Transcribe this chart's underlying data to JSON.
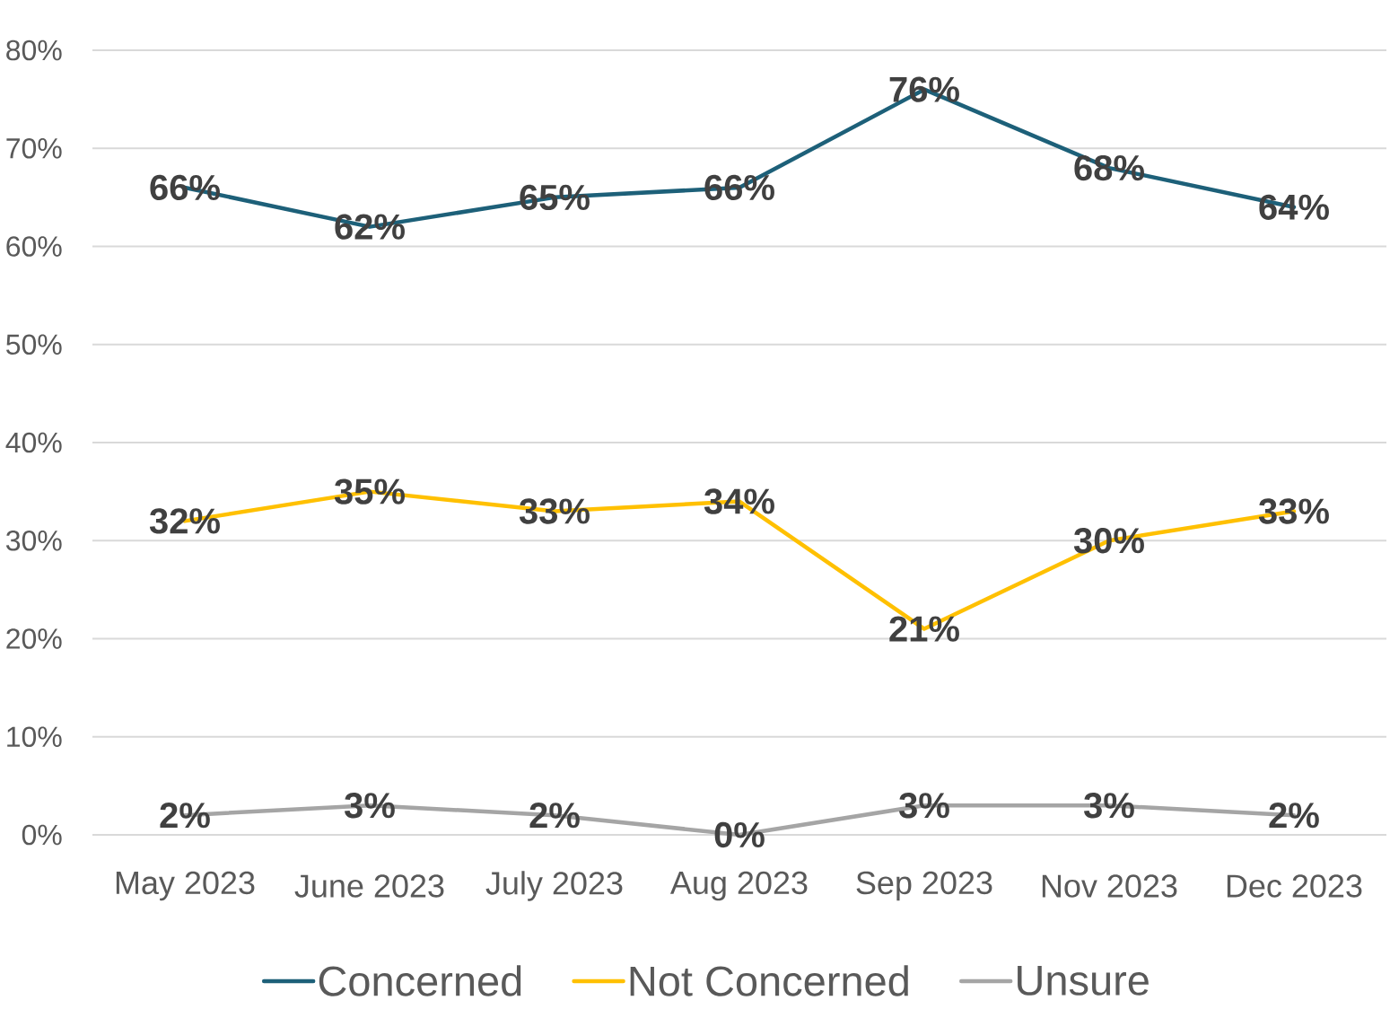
{
  "chart_data": {
    "type": "line",
    "categories": [
      "May 2023",
      "June 2023",
      "July 2023",
      "Aug 2023",
      "Sep 2023",
      "Nov 2023",
      "Dec 2023"
    ],
    "series": [
      {
        "name": "Concerned",
        "color": "#1d6079",
        "values": [
          66,
          62,
          65,
          66,
          76,
          68,
          64
        ],
        "value_labels": [
          "66%",
          "62%",
          "65%",
          "66%",
          "76%",
          "68%",
          "64%"
        ]
      },
      {
        "name": "Not Concerned",
        "color": "#ffc000",
        "values": [
          32,
          35,
          33,
          34,
          21,
          30,
          33
        ],
        "value_labels": [
          "32%",
          "35%",
          "33%",
          "34%",
          "21%",
          "30%",
          "33%"
        ]
      },
      {
        "name": "Unsure",
        "color": "#a5a5a5",
        "values": [
          2,
          3,
          2,
          0,
          3,
          3,
          2
        ],
        "value_labels": [
          "2%",
          "3%",
          "2%",
          "0%",
          "3%",
          "3%",
          "2%"
        ]
      }
    ],
    "ylim": [
      0,
      80
    ],
    "yticks": [
      {
        "value": 0,
        "label": "0%"
      },
      {
        "value": 10,
        "label": "10%"
      },
      {
        "value": 20,
        "label": "20%"
      },
      {
        "value": 30,
        "label": "30%"
      },
      {
        "value": 40,
        "label": "40%"
      },
      {
        "value": 50,
        "label": "50%"
      },
      {
        "value": 60,
        "label": "60%"
      },
      {
        "value": 70,
        "label": "70%"
      },
      {
        "value": 80,
        "label": "80%"
      }
    ],
    "grid": "y",
    "legend": "bottom",
    "marker": "none",
    "line_style": "solid"
  }
}
